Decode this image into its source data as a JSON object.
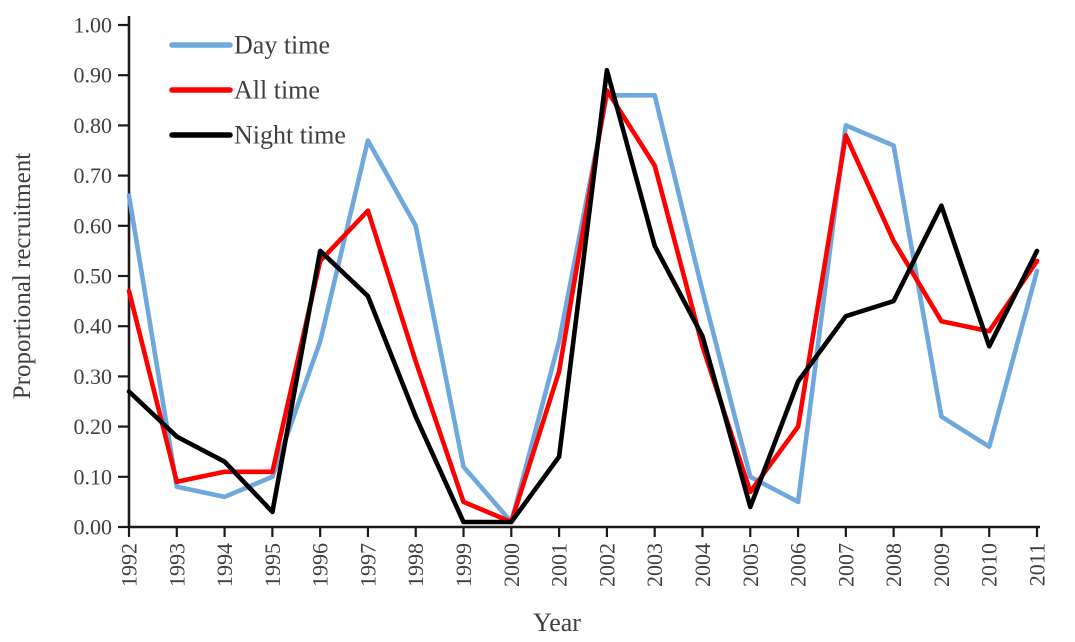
{
  "chart_data": {
    "type": "line",
    "title": "",
    "xlabel": "Year",
    "ylabel": "Proportional recruitment",
    "x": [
      1992,
      1993,
      1994,
      1995,
      1996,
      1997,
      1998,
      1999,
      2000,
      2001,
      2002,
      2003,
      2004,
      2005,
      2006,
      2007,
      2008,
      2009,
      2010,
      2011
    ],
    "ylim": [
      0.0,
      1.0
    ],
    "ytick_step": 0.1,
    "ytick_labels": [
      "0.00",
      "0.10",
      "0.20",
      "0.30",
      "0.40",
      "0.50",
      "0.60",
      "0.70",
      "0.80",
      "0.90",
      "1.00"
    ],
    "grid": false,
    "legend_position": "top-left-inside",
    "series": [
      {
        "name": "Day time",
        "color": "#6fa8dc",
        "values": [
          0.66,
          0.08,
          0.06,
          0.1,
          0.37,
          0.77,
          0.6,
          0.12,
          0.01,
          0.37,
          0.86,
          0.86,
          0.47,
          0.1,
          0.05,
          0.8,
          0.76,
          0.22,
          0.16,
          0.51
        ]
      },
      {
        "name": "All time",
        "color": "#fe0000",
        "values": [
          0.47,
          0.09,
          0.11,
          0.11,
          0.53,
          0.63,
          0.33,
          0.05,
          0.01,
          0.31,
          0.87,
          0.72,
          0.36,
          0.07,
          0.2,
          0.78,
          0.57,
          0.41,
          0.39,
          0.53
        ]
      },
      {
        "name": "Night time",
        "color": "#000000",
        "values": [
          0.27,
          0.18,
          0.13,
          0.03,
          0.55,
          0.46,
          0.22,
          0.01,
          0.01,
          0.14,
          0.91,
          0.56,
          0.38,
          0.04,
          0.29,
          0.42,
          0.45,
          0.64,
          0.36,
          0.55
        ]
      }
    ]
  },
  "styles": {
    "axis_color": "#1a1a1a",
    "text_color": "#3f3f3f",
    "background": "#ffffff"
  }
}
